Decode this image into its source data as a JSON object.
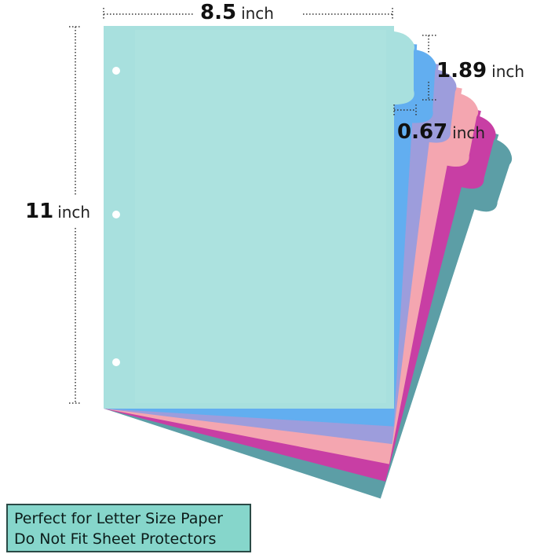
{
  "dimensions": [
    {
      "value": "8.5",
      "unit": "inch"
    },
    {
      "value": "1.89",
      "unit": "inch"
    },
    {
      "value": "0.67",
      "unit": "inch"
    },
    {
      "value": "11",
      "unit": "inch"
    }
  ],
  "note": {
    "lines": [
      "Perfect for Letter Size Paper",
      "Do Not Fit Sheet Protectors"
    ]
  }
}
